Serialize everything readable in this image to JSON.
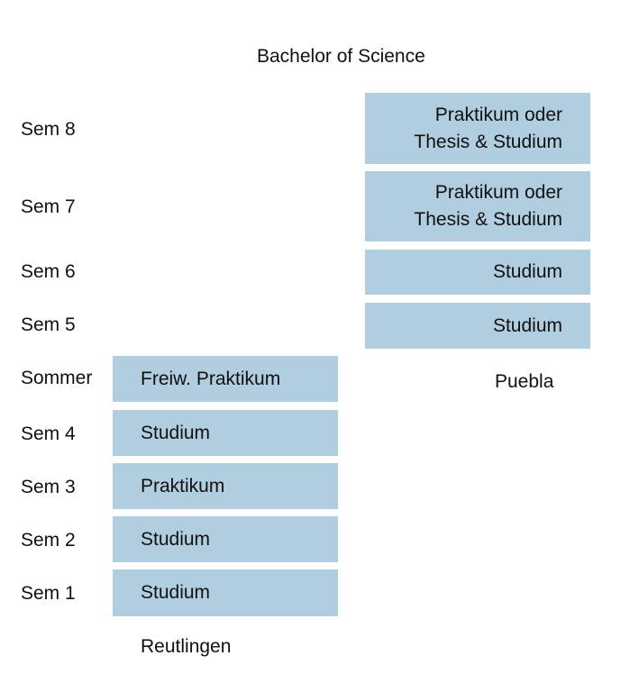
{
  "title": "Bachelor of Science",
  "rows": [
    "Sem 8",
    "Sem 7",
    "Sem 6",
    "Sem 5",
    "Sommer",
    "Sem 4",
    "Sem 3",
    "Sem 2",
    "Sem 1"
  ],
  "left": {
    "location": "Reutlingen",
    "blocks": [
      {
        "lines": [
          "Freiw. Praktikum"
        ]
      },
      {
        "lines": [
          "Studium"
        ]
      },
      {
        "lines": [
          "Praktikum"
        ]
      },
      {
        "lines": [
          "Studium"
        ]
      },
      {
        "lines": [
          "Studium"
        ]
      }
    ]
  },
  "right": {
    "location": "Puebla",
    "blocks": [
      {
        "lines": [
          "Praktikum oder",
          "Thesis & Studium"
        ]
      },
      {
        "lines": [
          "Praktikum oder",
          "Thesis & Studium"
        ]
      },
      {
        "lines": [
          "Studium"
        ]
      },
      {
        "lines": [
          "Studium"
        ]
      }
    ]
  }
}
